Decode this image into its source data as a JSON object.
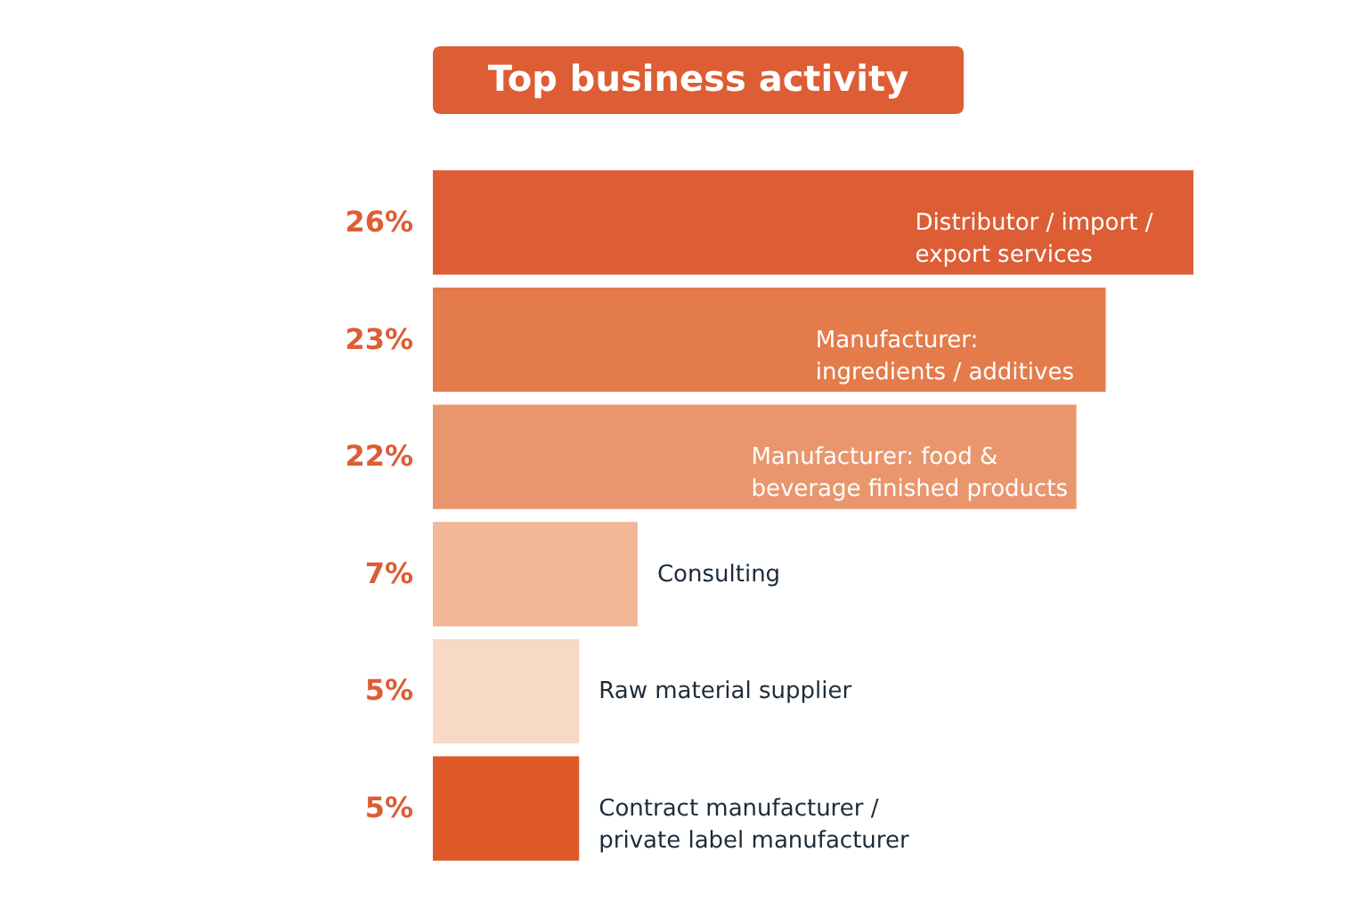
{
  "chart_data": {
    "type": "bar",
    "orientation": "horizontal",
    "title": "Top business activity",
    "categories": [
      "Distributor / import /\nexport services",
      "Manufacturer:\ningredients / additives",
      "Manufacturer: food &\nbeverage finished products",
      "Consulting",
      "Raw material supplier",
      "Contract manufacturer /\nprivate label manufacturer"
    ],
    "values": [
      26,
      23,
      22,
      7,
      5,
      5
    ],
    "colors": [
      "#dd5d34",
      "#e47b4b",
      "#e9966d",
      "#f1b796",
      "#f7d9c6",
      "#dd5a28"
    ],
    "value_labels": [
      "26%",
      "23%",
      "22%",
      "7%",
      "5%",
      "5%"
    ],
    "tick_labels": false
  }
}
